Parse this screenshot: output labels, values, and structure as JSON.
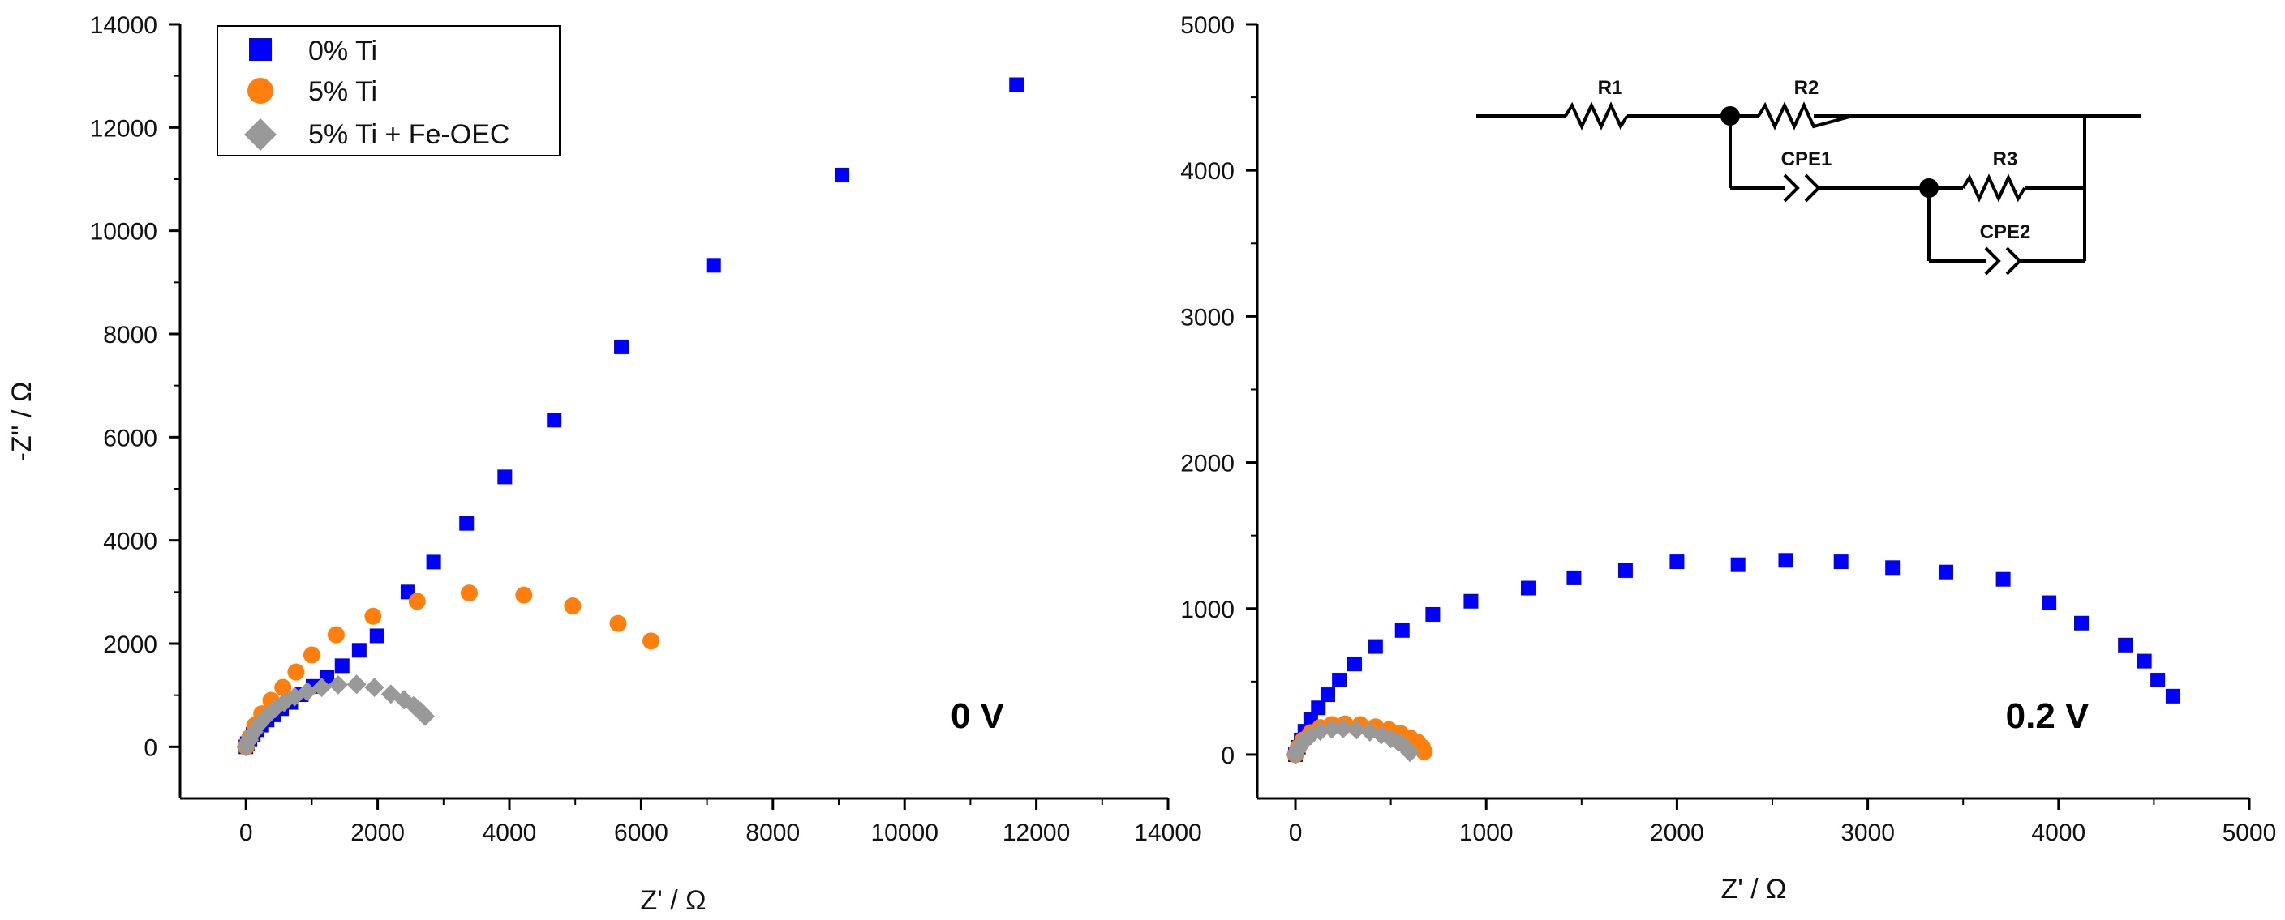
{
  "colors": {
    "series_0": "#0000ff",
    "series_1": "#ff7f0e",
    "series_2": "#999999",
    "axis": "#000000"
  },
  "chart_data": [
    {
      "type": "scatter",
      "panel": "left",
      "xlabel": "Z' / Ω",
      "ylabel": "-Z'' / Ω",
      "xlim": [
        -1000,
        14000
      ],
      "ylim": [
        -1000,
        14000
      ],
      "xticks": [
        0,
        2000,
        4000,
        6000,
        8000,
        10000,
        12000,
        14000
      ],
      "yticks": [
        0,
        2000,
        4000,
        6000,
        8000,
        10000,
        12000,
        14000
      ],
      "annotation": "0 V",
      "legend": {
        "placement": "top-left",
        "entries": [
          "0% Ti",
          "5% Ti",
          "5% Ti + Fe-OEC"
        ]
      },
      "series": [
        {
          "name": "0% Ti",
          "marker": "square",
          "x": [
            0,
            20,
            60,
            110,
            170,
            240,
            320,
            420,
            540,
            680,
            840,
            1020,
            1230,
            1460,
            1720,
            1990,
            2460,
            2850,
            3350,
            3930,
            4680,
            5700,
            7100,
            9050,
            11700
          ],
          "y": [
            0,
            60,
            150,
            240,
            330,
            420,
            520,
            620,
            740,
            860,
            1010,
            1170,
            1350,
            1570,
            1870,
            2150,
            3000,
            3580,
            4330,
            5230,
            6330,
            7750,
            9330,
            11080,
            12830
          ]
        },
        {
          "name": "5% Ti",
          "marker": "circle",
          "x": [
            0,
            60,
            140,
            240,
            380,
            560,
            760,
            1000,
            1370,
            1930,
            2600,
            3390,
            4220,
            4960,
            5650,
            6150
          ],
          "y": [
            0,
            180,
            420,
            640,
            900,
            1150,
            1450,
            1780,
            2170,
            2530,
            2820,
            2980,
            2940,
            2730,
            2390,
            2050
          ]
        },
        {
          "name": "5% Ti + Fe-OEC",
          "marker": "diamond",
          "x": [
            0,
            50,
            120,
            210,
            320,
            440,
            580,
            740,
            930,
            1150,
            1400,
            1680,
            1950,
            2200,
            2400,
            2550,
            2650,
            2720
          ],
          "y": [
            0,
            130,
            290,
            450,
            600,
            740,
            860,
            970,
            1070,
            1150,
            1200,
            1210,
            1150,
            1020,
            910,
            800,
            690,
            590
          ]
        }
      ]
    },
    {
      "type": "scatter",
      "panel": "right",
      "xlabel": "Z' / Ω",
      "ylabel": "",
      "xlim": [
        -200,
        5000
      ],
      "ylim": [
        -300,
        5000
      ],
      "xticks": [
        0,
        1000,
        2000,
        3000,
        4000,
        5000
      ],
      "yticks": [
        0,
        1000,
        2000,
        3000,
        4000,
        5000
      ],
      "annotation": "0.2 V",
      "series": [
        {
          "name": "0% Ti",
          "marker": "square",
          "x": [
            0,
            15,
            30,
            50,
            80,
            120,
            170,
            230,
            310,
            420,
            560,
            720,
            920,
            1220,
            1460,
            1730,
            2000,
            2320,
            2570,
            2860,
            3130,
            3410,
            3710,
            3950,
            4120,
            4350,
            4450,
            4520,
            4600
          ],
          "y": [
            0,
            50,
            100,
            160,
            240,
            320,
            410,
            510,
            620,
            740,
            850,
            960,
            1050,
            1140,
            1210,
            1260,
            1320,
            1300,
            1330,
            1320,
            1280,
            1250,
            1200,
            1040,
            900,
            750,
            640,
            510,
            400
          ]
        },
        {
          "name": "5% Ti",
          "marker": "circle",
          "x": [
            0,
            15,
            40,
            80,
            130,
            190,
            260,
            340,
            420,
            490,
            550,
            600,
            640,
            665,
            675
          ],
          "y": [
            0,
            50,
            100,
            150,
            185,
            205,
            210,
            205,
            190,
            170,
            145,
            115,
            85,
            50,
            20
          ]
        },
        {
          "name": "5% Ti + Fe-OEC",
          "marker": "diamond",
          "x": [
            0,
            15,
            40,
            80,
            130,
            190,
            250,
            320,
            390,
            450,
            500,
            540,
            570,
            590,
            600
          ],
          "y": [
            0,
            45,
            90,
            130,
            160,
            175,
            178,
            170,
            155,
            135,
            110,
            85,
            60,
            35,
            15
          ]
        }
      ]
    }
  ],
  "inset": {
    "labels": [
      "R1",
      "R2",
      "CPE1",
      "R3",
      "CPE2"
    ]
  }
}
